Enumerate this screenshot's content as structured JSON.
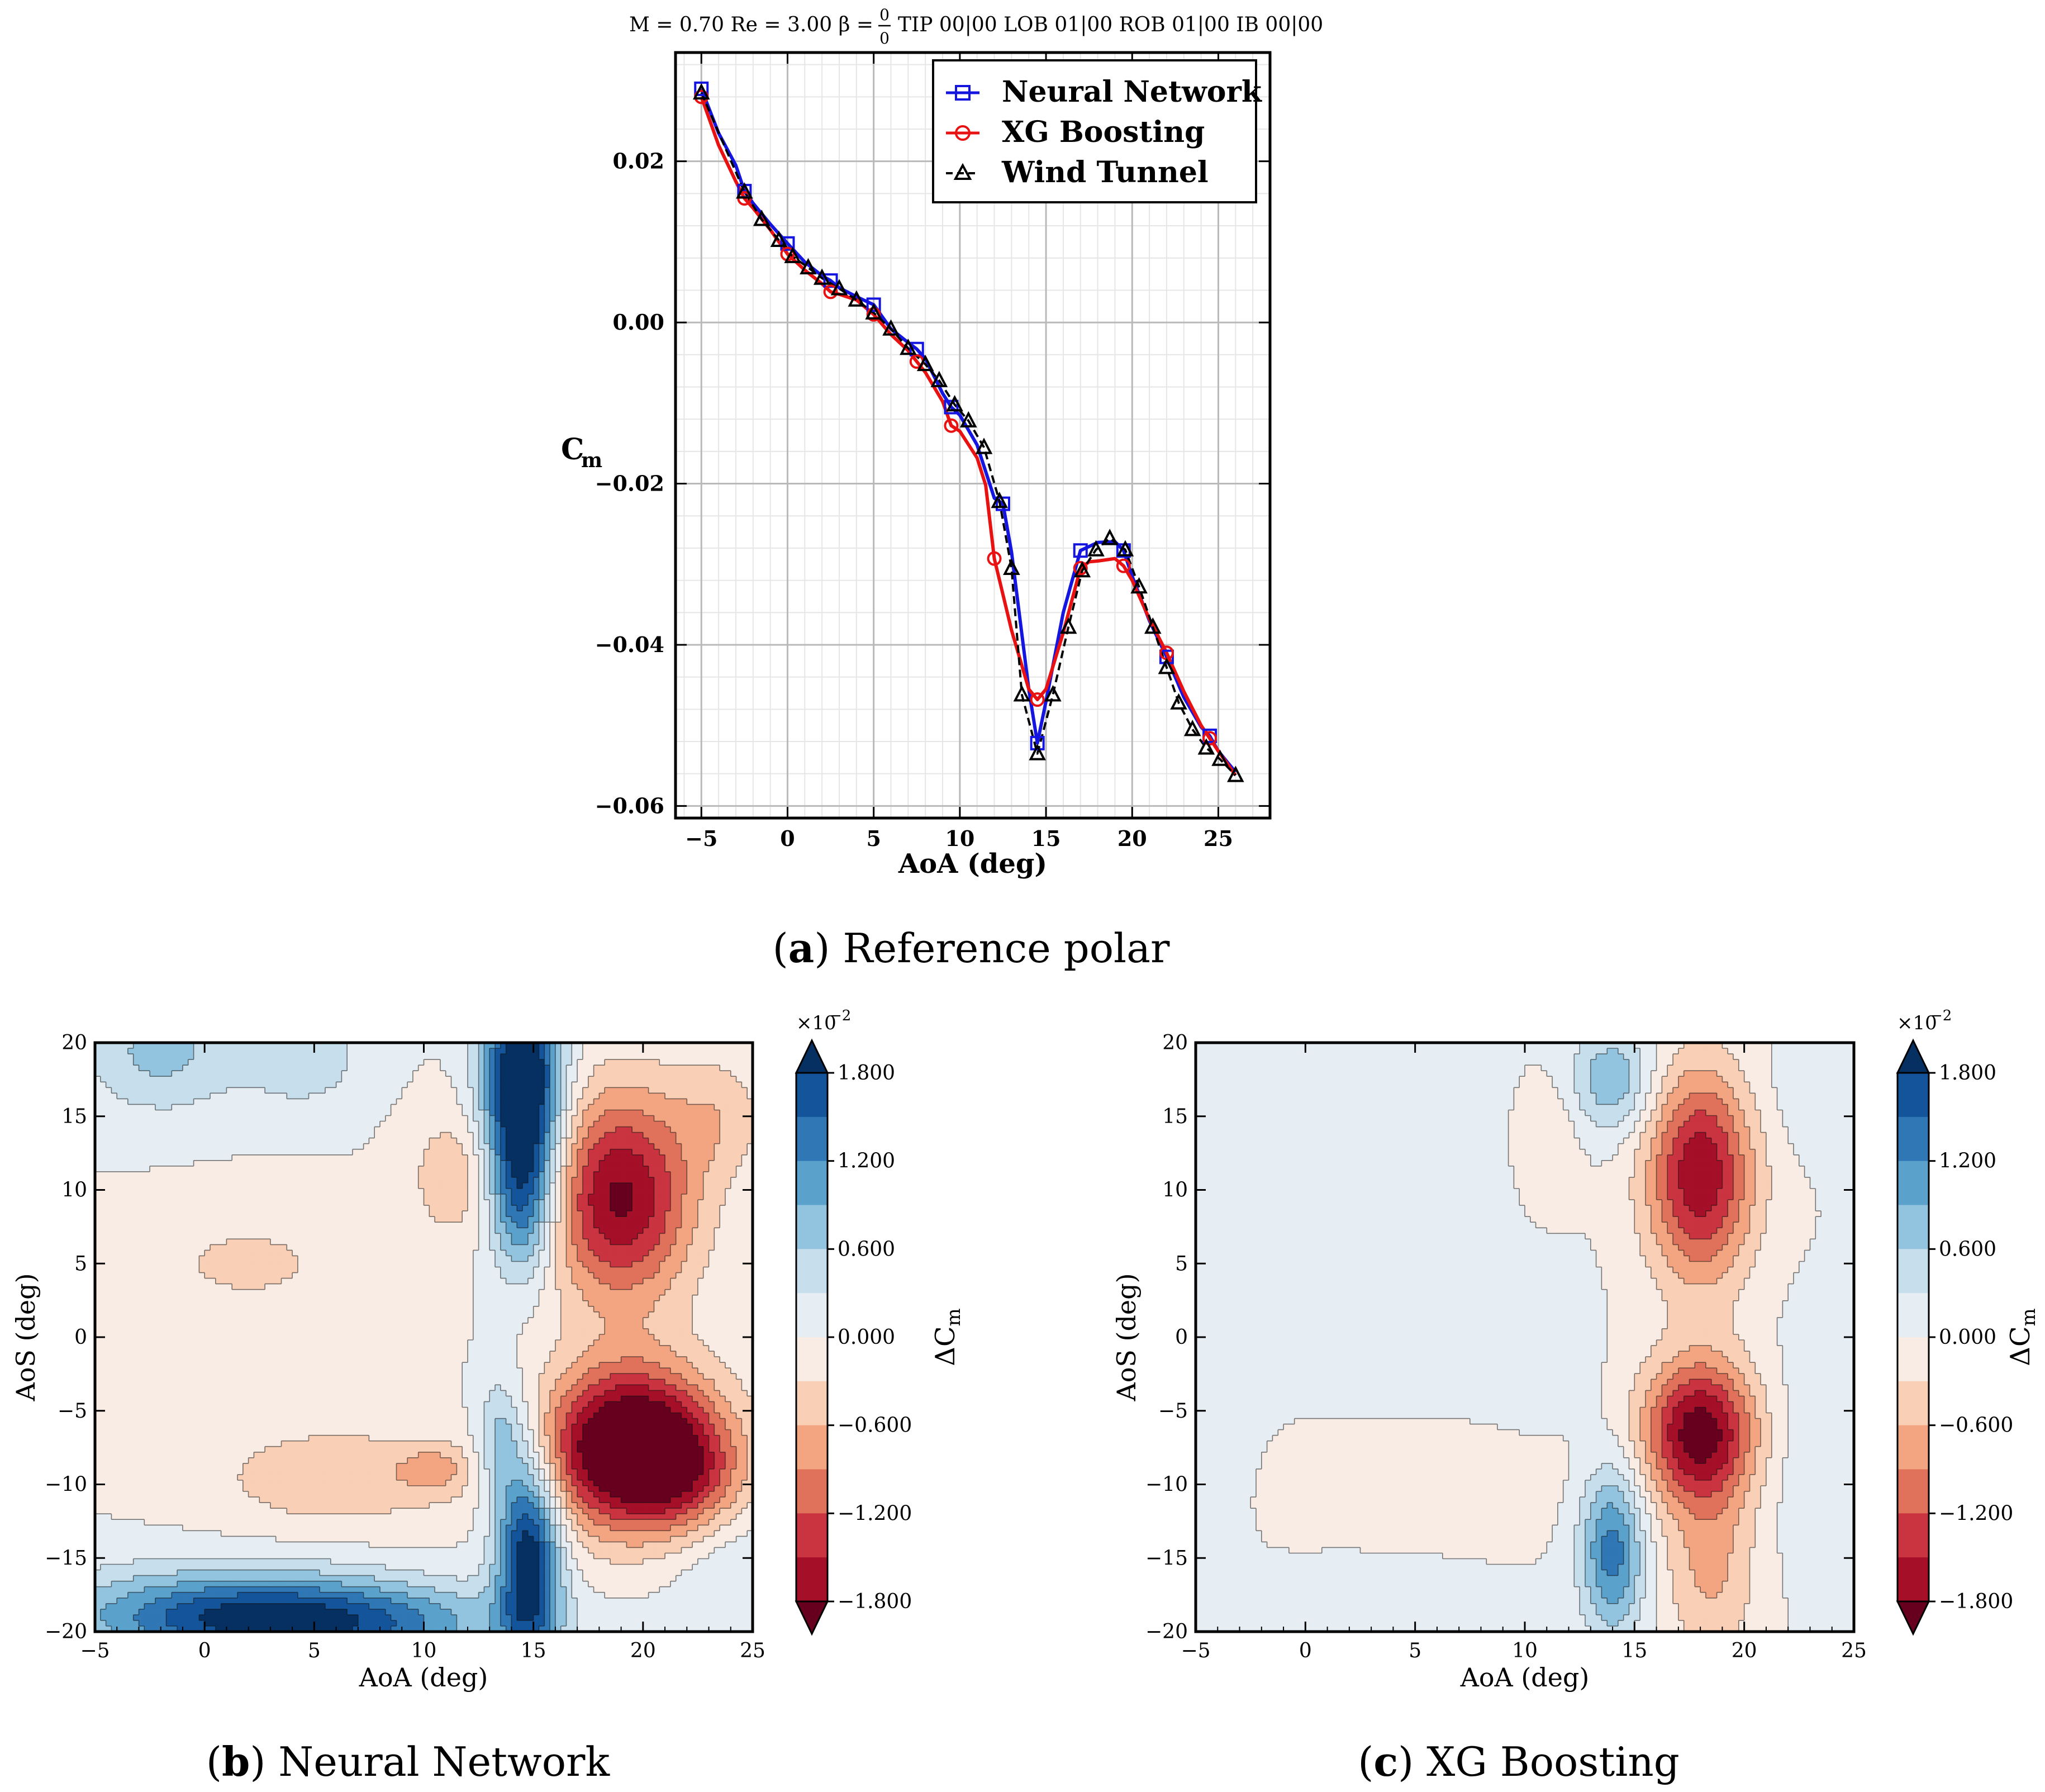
{
  "chart_data": [
    {
      "id": "a",
      "type": "line",
      "title": "M = 0.70 Re = 3.00 β = 0/0 TIP 00|00 LOB 01|00 ROB 01|00 IB 00|00",
      "title_parts": {
        "pre": "M = 0.70  Re = 3.00  β =",
        "frac_num": "0",
        "frac_den": "0",
        "post": "TIP 00|00 LOB 01|00 ROB 01|00 IB 00|00"
      },
      "xlabel": "AoA (deg)",
      "ylabel_main": "C",
      "ylabel_sub": "m",
      "xlim": [
        -6.5,
        28
      ],
      "ylim": [
        -0.0615,
        0.0335
      ],
      "xticks": [
        -5,
        0,
        5,
        10,
        15,
        20,
        25
      ],
      "xtick_labels": [
        "−5",
        "0",
        "5",
        "10",
        "15",
        "20",
        "25"
      ],
      "yticks": [
        -0.06,
        -0.04,
        -0.02,
        0.0,
        0.02
      ],
      "ytick_labels": [
        "−0.06",
        "−0.04",
        "−0.02",
        "0.00",
        "0.02"
      ],
      "grid": true,
      "legend_position": "top-right",
      "caption_label": "a",
      "caption_text": "Reference polar",
      "series": [
        {
          "name": "Neural Network",
          "color": "#1515e0",
          "marker": "square",
          "linestyle": "solid",
          "x": [
            -5,
            -4,
            -3,
            -2.5,
            -2,
            -1,
            0,
            1,
            2,
            2.5,
            3,
            4,
            5,
            6,
            7,
            7.5,
            8,
            9,
            9.5,
            10,
            11,
            12,
            12.5,
            13,
            14,
            14.5,
            15,
            16,
            17,
            18,
            19,
            19.5,
            20,
            21,
            22,
            23,
            24,
            24.5,
            25,
            26
          ],
          "y": [
            0.029,
            0.0235,
            0.0195,
            0.0163,
            0.0148,
            0.0122,
            0.0098,
            0.0075,
            0.0058,
            0.0052,
            0.0043,
            0.0032,
            0.0022,
            -0.0008,
            -0.0025,
            -0.0033,
            -0.0045,
            -0.0088,
            -0.0105,
            -0.0115,
            -0.0152,
            -0.0218,
            -0.0225,
            -0.0285,
            -0.0455,
            -0.0522,
            -0.047,
            -0.036,
            -0.0283,
            -0.0273,
            -0.0272,
            -0.0283,
            -0.0315,
            -0.037,
            -0.0415,
            -0.0465,
            -0.0502,
            -0.0513,
            -0.0532,
            -0.0558
          ],
          "marker_x": [
            -5,
            -2.5,
            0,
            2.5,
            5,
            7.5,
            9.5,
            12.5,
            14.5,
            17,
            19.5,
            22,
            24.5
          ]
        },
        {
          "name": "XG Boosting",
          "color": "#e81212",
          "marker": "circle",
          "linestyle": "solid",
          "x": [
            -5,
            -4,
            -3,
            -2.5,
            -2,
            -1,
            0,
            1,
            2,
            2.5,
            3,
            4,
            5,
            6,
            7,
            8,
            9,
            9.5,
            10,
            11,
            11.5,
            12,
            13,
            14,
            14.5,
            15,
            16,
            17,
            17.5,
            18,
            19,
            19.5,
            20,
            21,
            22,
            23,
            24,
            25,
            26
          ],
          "y": [
            0.028,
            0.022,
            0.0175,
            0.0154,
            0.0142,
            0.0115,
            0.0085,
            0.0065,
            0.0048,
            0.0038,
            0.0035,
            0.0028,
            0.001,
            -0.0015,
            -0.0035,
            -0.0062,
            -0.0098,
            -0.0128,
            -0.0135,
            -0.0168,
            -0.0202,
            -0.0293,
            -0.0382,
            -0.0455,
            -0.0468,
            -0.0455,
            -0.0385,
            -0.0305,
            -0.0297,
            -0.0296,
            -0.0293,
            -0.0302,
            -0.032,
            -0.0368,
            -0.041,
            -0.0458,
            -0.05,
            -0.0532,
            -0.0562
          ],
          "marker_x": [
            -5,
            -2.5,
            0,
            2.5,
            5,
            7.5,
            9.5,
            12,
            14.5,
            17,
            19.5,
            22,
            24.5
          ]
        },
        {
          "name": "Wind Tunnel",
          "color": "#000000",
          "marker": "triangle",
          "linestyle": "dashed",
          "x": [
            -5,
            -2.5,
            -1.5,
            -0.5,
            0.3,
            1.2,
            2,
            3,
            4,
            5,
            6,
            7,
            8,
            8.8,
            9.7,
            10.5,
            11.4,
            12.3,
            13,
            13.6,
            14.5,
            15.4,
            16.3,
            17.1,
            17.9,
            18.7,
            19.6,
            20.4,
            21.2,
            22,
            22.7,
            23.5,
            24.3,
            25.1,
            26
          ],
          "y": [
            0.0285,
            0.0162,
            0.0128,
            0.0102,
            0.0082,
            0.0068,
            0.0055,
            0.0042,
            0.0028,
            0.0012,
            -0.0008,
            -0.0032,
            -0.0052,
            -0.0072,
            -0.0102,
            -0.0122,
            -0.0155,
            -0.0222,
            -0.0305,
            -0.0462,
            -0.0535,
            -0.0462,
            -0.0378,
            -0.0308,
            -0.0282,
            -0.0268,
            -0.0282,
            -0.0328,
            -0.0378,
            -0.0428,
            -0.0472,
            -0.0505,
            -0.0528,
            -0.0542,
            -0.0562
          ]
        }
      ]
    },
    {
      "id": "b",
      "type": "heatmap",
      "subtype": "filled-contour",
      "xlabel": "AoA (deg)",
      "ylabel": "AoS (deg)",
      "xlim": [
        -5,
        25
      ],
      "ylim": [
        -20,
        20
      ],
      "xticks": [
        -5,
        0,
        5,
        10,
        15,
        20,
        25
      ],
      "xtick_labels": [
        "−5",
        "0",
        "5",
        "10",
        "15",
        "20",
        "25"
      ],
      "yticks": [
        -20,
        -15,
        -10,
        -5,
        0,
        5,
        10,
        15,
        20
      ],
      "ytick_labels": [
        "−20",
        "−15",
        "−10",
        "−5",
        "0",
        "5",
        "10",
        "15",
        "20"
      ],
      "colorbar_label_main": "ΔC",
      "colorbar_label_sub": "m",
      "colorbar_multiplier": "×10",
      "colorbar_multiplier_exp": "−2",
      "colorbar_ticks": [
        "1.800",
        "1.200",
        "0.600",
        "0.000",
        "−0.600",
        "−1.200",
        "−1.800"
      ],
      "caption_label": "b",
      "caption_text": "Neural Network",
      "field_units": "x10^-2",
      "peaks": [
        {
          "aoa": 14.5,
          "aos": 17,
          "sa": 1.2,
          "sb": 5.5,
          "amp": 2.6
        },
        {
          "aoa": 14.5,
          "aos": 9,
          "sa": 1.0,
          "sb": 3.5,
          "amp": 1.0
        },
        {
          "aoa": 14.8,
          "aos": -15,
          "sa": 1.0,
          "sb": 5.0,
          "amp": 2.1
        },
        {
          "aoa": 13.5,
          "aos": -7,
          "sa": 0.8,
          "sb": 3.0,
          "amp": 0.8
        },
        {
          "aoa": 19.0,
          "aos": 9.5,
          "sa": 2.3,
          "sb": 5.0,
          "amp": -1.85
        },
        {
          "aoa": 19.5,
          "aos": -7.5,
          "sa": 2.8,
          "sb": 3.8,
          "amp": -2.6
        },
        {
          "aoa": 22.0,
          "aos": -9.5,
          "sa": 2.0,
          "sb": 2.5,
          "amp": -0.6
        },
        {
          "aoa": 4.0,
          "aos": -19.5,
          "sa": 6.0,
          "sb": 1.8,
          "amp": 1.8
        },
        {
          "aoa": 1.0,
          "aos": -17.5,
          "sa": 6.0,
          "sb": 2.0,
          "amp": 0.6
        },
        {
          "aoa": -2.0,
          "aos": 19.5,
          "sa": 2.5,
          "sb": 3.0,
          "amp": 0.7
        },
        {
          "aoa": 4.5,
          "aos": 19.0,
          "sa": 2.0,
          "sb": 2.5,
          "amp": 0.5
        },
        {
          "aoa": 6.0,
          "aos": -9.5,
          "sa": 4.0,
          "sb": 2.5,
          "amp": -0.55
        },
        {
          "aoa": 10.5,
          "aos": -9.0,
          "sa": 1.2,
          "sb": 1.2,
          "amp": -0.5
        },
        {
          "aoa": 2.0,
          "aos": 5.0,
          "sa": 4.0,
          "sb": 3.0,
          "amp": -0.35
        },
        {
          "aoa": 11.5,
          "aos": 11.0,
          "sa": 1.5,
          "sb": 3.0,
          "amp": -0.55
        },
        {
          "aoa": 23.5,
          "aos": 15.0,
          "sa": 1.5,
          "sb": 3.0,
          "amp": -0.45
        },
        {
          "aoa": 24.0,
          "aos": -16.0,
          "sa": 2.0,
          "sb": 3.5,
          "amp": 0.3
        }
      ]
    },
    {
      "id": "c",
      "type": "heatmap",
      "subtype": "filled-contour",
      "xlabel": "AoA (deg)",
      "ylabel": "AoS (deg)",
      "xlim": [
        -5,
        25
      ],
      "ylim": [
        -20,
        20
      ],
      "xticks": [
        -5,
        0,
        5,
        10,
        15,
        20,
        25
      ],
      "xtick_labels": [
        "−5",
        "0",
        "5",
        "10",
        "15",
        "20",
        "25"
      ],
      "yticks": [
        -20,
        -15,
        -10,
        -5,
        0,
        5,
        10,
        15,
        20
      ],
      "ytick_labels": [
        "−20",
        "−15",
        "−10",
        "−5",
        "0",
        "5",
        "10",
        "15",
        "20"
      ],
      "colorbar_label_main": "ΔC",
      "colorbar_label_sub": "m",
      "colorbar_multiplier": "×10",
      "colorbar_multiplier_exp": "−2",
      "colorbar_ticks": [
        "1.800",
        "1.200",
        "0.600",
        "0.000",
        "−0.600",
        "−1.200",
        "−1.800"
      ],
      "caption_label": "c",
      "caption_text": "XG Boosting",
      "field_units": "x10^-2",
      "peaks": [
        {
          "aoa": 18.0,
          "aos": 11.0,
          "sa": 1.7,
          "sb": 5.0,
          "amp": -1.75
        },
        {
          "aoa": 18.0,
          "aos": -6.5,
          "sa": 1.8,
          "sb": 3.5,
          "amp": -2.0
        },
        {
          "aoa": 18.5,
          "aos": -16.0,
          "sa": 1.5,
          "sb": 4.0,
          "amp": -0.65
        },
        {
          "aoa": 14.0,
          "aos": -14.5,
          "sa": 1.0,
          "sb": 4.0,
          "amp": 1.35
        },
        {
          "aoa": 14.0,
          "aos": 17.5,
          "sa": 1.3,
          "sb": 2.5,
          "amp": 0.85
        },
        {
          "aoa": 5.0,
          "aos": 6.0,
          "sa": 3.5,
          "sb": 12.0,
          "amp": 0.2
        },
        {
          "aoa": 6.0,
          "aos": -9.0,
          "sa": 4.0,
          "sb": 3.0,
          "amp": -0.28
        },
        {
          "aoa": 11.0,
          "aos": 13.0,
          "sa": 1.0,
          "sb": 3.0,
          "amp": -0.35
        },
        {
          "aoa": 23.5,
          "aos": -8.0,
          "sa": 2.0,
          "sb": 6.0,
          "amp": 0.25
        },
        {
          "aoa": 23.5,
          "aos": 17.0,
          "sa": 1.8,
          "sb": 3.0,
          "amp": 0.25
        },
        {
          "aoa": -4.5,
          "aos": 0.0,
          "sa": 1.5,
          "sb": 6.0,
          "amp": 0.25
        },
        {
          "aoa": 10.0,
          "aos": -2.0,
          "sa": 2.0,
          "sb": 4.0,
          "amp": 0.15
        }
      ]
    }
  ],
  "colormap": {
    "levels_neg_to_pos": [
      "#67001f",
      "#a50f28",
      "#ca3340",
      "#e0715b",
      "#f3a582",
      "#f9cfb6",
      "#f8ece4",
      "#e6eef3",
      "#c7dfec",
      "#93c4df",
      "#5aa1cc",
      "#2f77b5",
      "#13549a",
      "#053061"
    ]
  }
}
